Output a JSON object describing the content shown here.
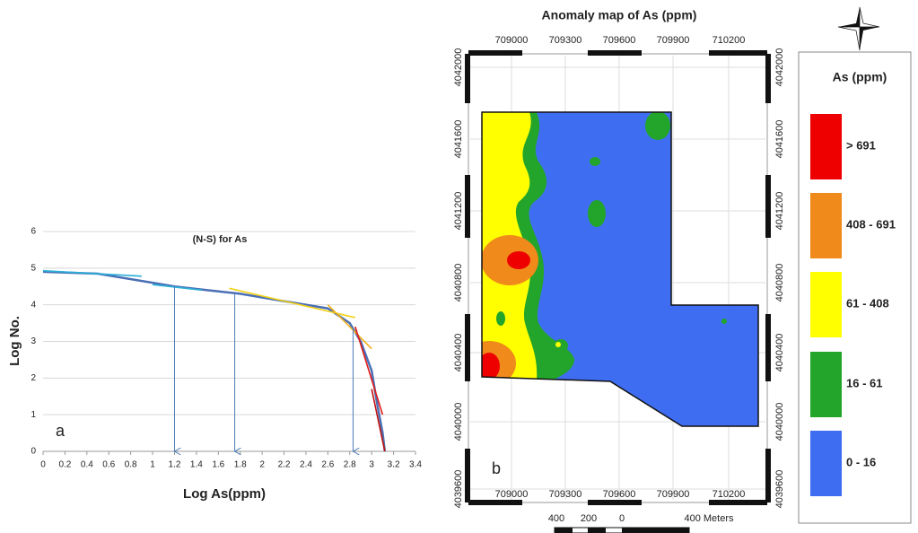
{
  "chart_data": {
    "type": "line",
    "title": "(N-S) for As",
    "panel_label": "a",
    "x_label": "Log As(ppm)",
    "y_label": "Log No.",
    "xlim": [
      0,
      3.4
    ],
    "xticks": [
      0,
      0.2,
      0.4,
      0.6,
      0.8,
      1,
      1.2,
      1.4,
      1.6,
      1.8,
      2,
      2.2,
      2.4,
      2.6,
      2.8,
      3,
      3.2,
      3.4
    ],
    "ylim": [
      0,
      6
    ],
    "yticks": [
      0,
      1,
      2,
      3,
      4,
      5,
      6
    ],
    "grid": true,
    "series": [
      {
        "color": "#4a6fb5",
        "x": [
          0,
          0.5,
          1,
          1.2,
          1.5,
          1.8,
          2.2,
          2.6,
          2.8,
          2.9,
          3,
          3.05,
          3.1,
          3.12
        ],
        "values": [
          4.9,
          4.85,
          4.6,
          4.5,
          4.4,
          4.3,
          4.1,
          3.9,
          3.5,
          3,
          2.2,
          1.3,
          0.5,
          0
        ]
      },
      {
        "color": "#2ab0d8",
        "x": [
          0,
          0.9
        ],
        "values": [
          4.93,
          4.78
        ]
      },
      {
        "color": "#2ab0d8",
        "x": [
          1,
          1.45
        ],
        "values": [
          4.55,
          4.4
        ]
      },
      {
        "color": "#f2d21a",
        "x": [
          1.7,
          2.85
        ],
        "values": [
          4.45,
          3.65
        ]
      },
      {
        "color": "#f2b01a",
        "x": [
          2.6,
          3
        ],
        "values": [
          4.0,
          2.8
        ]
      },
      {
        "color": "#e01a1a",
        "x": [
          2.85,
          3.1
        ],
        "values": [
          3.4,
          1.0
        ]
      },
      {
        "color": "#c01010",
        "x": [
          3.0,
          3.12
        ],
        "values": [
          1.7,
          0
        ]
      }
    ],
    "arrows": [
      {
        "x": 1.2,
        "y": 4.5
      },
      {
        "x": 1.75,
        "y": 4.3
      },
      {
        "x": 2.83,
        "y": 3.4
      }
    ]
  },
  "map": {
    "title": "Anomaly map of As (ppm)",
    "panel_label": "b",
    "x_labels": [
      "709000",
      "709300",
      "709600",
      "709900",
      "710200"
    ],
    "y_labels": [
      "4042000",
      "4041600",
      "4041200",
      "4040800",
      "4040400",
      "4040000",
      "4039600"
    ],
    "legend": {
      "title": "As (ppm)",
      "items": [
        {
          "label": "> 691",
          "color": "#ee0000"
        },
        {
          "label": "408 - 691",
          "color": "#f08a1a"
        },
        {
          "label": "61 - 408",
          "color": "#ffff00"
        },
        {
          "label": "16 - 61",
          "color": "#22a52a"
        },
        {
          "label": "0 - 16",
          "color": "#3f6df2"
        }
      ]
    },
    "scale_labels": [
      "400",
      "200",
      "0",
      "400 Meters"
    ]
  }
}
